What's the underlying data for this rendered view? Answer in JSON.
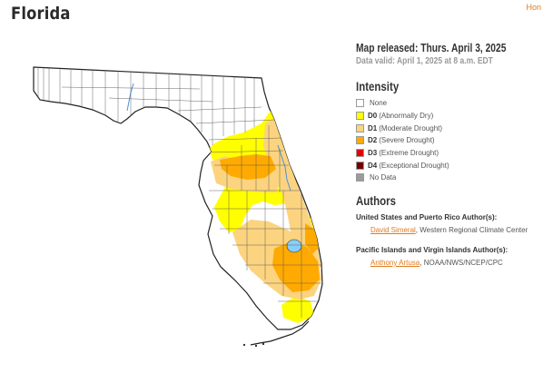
{
  "page": {
    "title": "Florida",
    "home_link": "Hon"
  },
  "info": {
    "released": "Map released: Thurs. April 3, 2025",
    "valid": "Data valid: April 1, 2025 at 8 a.m. EDT"
  },
  "intensity": {
    "heading": "Intensity",
    "items": [
      {
        "code": "",
        "label": "None",
        "color": "#ffffff"
      },
      {
        "code": "D0",
        "label": "(Abnormally Dry)",
        "color": "#ffff00"
      },
      {
        "code": "D1",
        "label": "(Moderate Drought)",
        "color": "#fcd37f"
      },
      {
        "code": "D2",
        "label": "(Severe Drought)",
        "color": "#ffaa00"
      },
      {
        "code": "D3",
        "label": "(Extreme Drought)",
        "color": "#e60000"
      },
      {
        "code": "D4",
        "label": "(Exceptional Drought)",
        "color": "#730000"
      },
      {
        "code": "",
        "label": "No Data",
        "color": "#9b9b9b"
      }
    ]
  },
  "authors": {
    "heading": "Authors",
    "groups": [
      {
        "title": "United States and Puerto Rico Author(s):",
        "name": "David Simeral",
        "affiliation": ", Western Regional Climate Center"
      },
      {
        "title": "Pacific Islands and Virgin Islands Author(s):",
        "name": "Anthony Artusa",
        "affiliation": ", NOAA/NWS/NCEP/CPC"
      }
    ]
  },
  "colors": {
    "accent": "#e07a1e",
    "water": "#87cefa",
    "county_line": "#555555"
  }
}
